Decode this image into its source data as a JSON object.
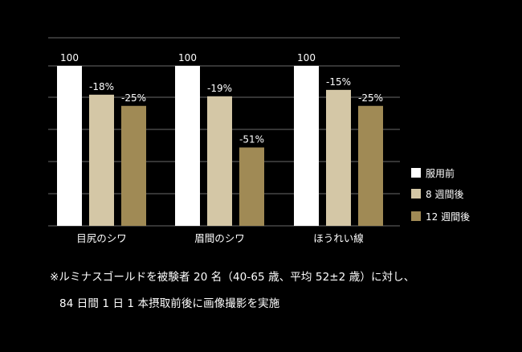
{
  "chart_data": {
    "type": "bar",
    "categories": [
      "目尻のシワ",
      "眉間のシワ",
      "ほうれい線"
    ],
    "series": [
      {
        "name": "服用前",
        "values": [
          100,
          100,
          100
        ],
        "labels": [
          "100",
          "100",
          "100"
        ],
        "color": "#ffffff"
      },
      {
        "name": "8 週間後",
        "values": [
          82,
          81,
          85
        ],
        "labels": [
          "-18%",
          "-19%",
          "-15%"
        ],
        "color": "#d4c7a6"
      },
      {
        "name": "12 週間後",
        "values": [
          75,
          49,
          75
        ],
        "labels": [
          "-25%",
          "-51%",
          "-25%"
        ],
        "color": "#a08a55"
      }
    ],
    "ylim": [
      0,
      100
    ],
    "grid": true,
    "legend": "right"
  },
  "footnote": {
    "line1": "※ルミナスゴールドを被験者 20 名（40-65 歳、平均 52±2 歳）に対し、",
    "line2": "84 日間 1 日 1 本摂取前後に画像撮影を実施"
  }
}
